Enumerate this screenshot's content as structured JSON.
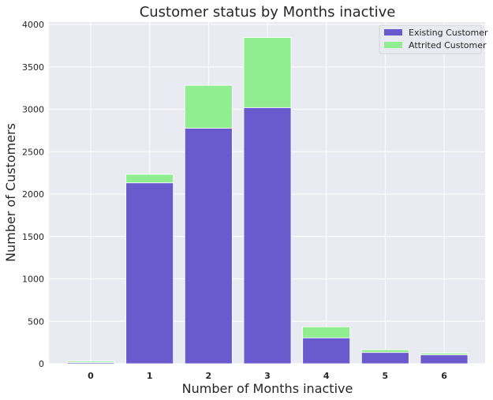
{
  "chart_data": {
    "type": "bar",
    "stacked": true,
    "title": "Customer status by Months inactive",
    "xlabel": "Number of Months inactive",
    "ylabel": "Number of Customers",
    "categories": [
      "0",
      "1",
      "2",
      "3",
      "4",
      "5",
      "6"
    ],
    "series": [
      {
        "name": "Existing Customer",
        "color": "#6a5acd",
        "values": [
          14,
          2133,
          2777,
          3020,
          305,
          133,
          105
        ]
      },
      {
        "name": "Attrited Customer",
        "color": "#90ee90",
        "values": [
          15,
          100,
          505,
          826,
          130,
          32,
          19
        ]
      }
    ],
    "ylim": [
      0,
      4000
    ],
    "yticks": [
      0,
      500,
      1000,
      1500,
      2000,
      2500,
      3000,
      3500,
      4000
    ],
    "grid": true,
    "legend_position": "top-right",
    "plot_background": "#eaeaf2"
  }
}
